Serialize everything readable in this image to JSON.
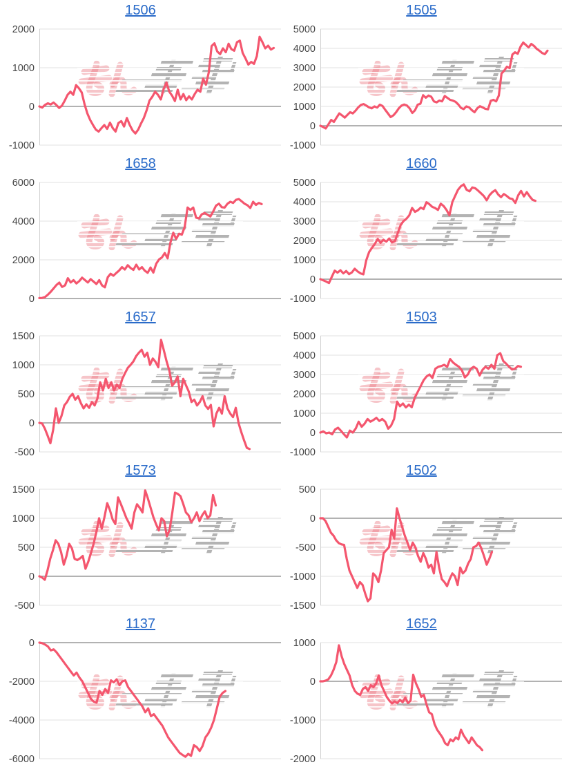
{
  "page": {
    "background": "#ffffff"
  },
  "watermark": {
    "name": "minkabu-watermark",
    "pink_color": "#e7626e",
    "gray_color": "#a9a9a9"
  },
  "style": {
    "line_color": "#f4566e",
    "grid_color": "#e0e0e0",
    "zero_line_color": "#999999",
    "axis_line_color": "#d0d0d0",
    "tick_label_color": "#454545",
    "title_link_color": "#2a6bc9"
  },
  "chart_data": [
    {
      "title": "1506",
      "type": "line",
      "ylim": [
        -1000,
        2000
      ],
      "yticks": [
        -1000,
        0,
        1000,
        2000
      ],
      "span": 0.97,
      "grid": true,
      "xlabel": "",
      "ylabel": "",
      "values": [
        0,
        -30,
        40,
        80,
        50,
        100,
        40,
        -40,
        20,
        150,
        300,
        380,
        300,
        550,
        470,
        360,
        60,
        -180,
        -350,
        -480,
        -600,
        -650,
        -560,
        -480,
        -580,
        -420,
        -560,
        -650,
        -430,
        -380,
        -520,
        -300,
        -480,
        -620,
        -700,
        -600,
        -440,
        -300,
        -100,
        150,
        250,
        380,
        300,
        180,
        450,
        620,
        380,
        280,
        140,
        430,
        180,
        320,
        160,
        260,
        180,
        320,
        430,
        380,
        720,
        560,
        880,
        1560,
        1630,
        1420,
        1350,
        1500,
        1400,
        1620,
        1480,
        1440,
        1660,
        1700,
        1380,
        1240,
        1080,
        1150,
        1100,
        1300,
        1800,
        1660,
        1500,
        1570,
        1470,
        1510
      ]
    },
    {
      "title": "1505",
      "type": "line",
      "ylim": [
        -1000,
        5000
      ],
      "yticks": [
        -1000,
        0,
        1000,
        2000,
        3000,
        4000,
        5000
      ],
      "span": 0.94,
      "grid": true,
      "xlabel": "",
      "ylabel": "",
      "values": [
        0,
        -60,
        -140,
        80,
        300,
        200,
        420,
        640,
        540,
        420,
        560,
        700,
        640,
        780,
        950,
        1080,
        1120,
        1040,
        950,
        900,
        1000,
        940,
        1090,
        1020,
        820,
        640,
        450,
        540,
        700,
        900,
        1040,
        1100,
        1050,
        900,
        660,
        800,
        1090,
        1140,
        1580,
        1450,
        1560,
        1500,
        1260,
        1210,
        1300,
        1260,
        1540,
        1440,
        1340,
        1300,
        1240,
        1100,
        920,
        860,
        1000,
        950,
        810,
        700,
        900,
        1010,
        950,
        880,
        850,
        1290,
        1340,
        1260,
        1560,
        2700,
        2850,
        3050,
        2980,
        3680,
        3800,
        3720,
        4080,
        4300,
        4180,
        4050,
        4230,
        4130,
        3980,
        3880,
        3760,
        3700,
        3880
      ]
    },
    {
      "title": "1658",
      "type": "line",
      "ylim": [
        0,
        6000
      ],
      "yticks": [
        0,
        2000,
        4000,
        6000
      ],
      "span": 0.92,
      "grid": true,
      "xlabel": "",
      "ylabel": "",
      "values": [
        20,
        30,
        80,
        200,
        350,
        520,
        700,
        820,
        600,
        680,
        1050,
        830,
        950,
        780,
        900,
        1080,
        950,
        830,
        1000,
        880,
        750,
        950,
        680,
        580,
        1100,
        1280,
        1180,
        1320,
        1450,
        1620,
        1500,
        1720,
        1580,
        1480,
        1750,
        1500,
        1620,
        1440,
        1330,
        1600,
        1340,
        1800,
        2020,
        2120,
        2350,
        2080,
        2900,
        3400,
        3080,
        3350,
        3300,
        3700,
        4700,
        4580,
        4700,
        4180,
        4140,
        4350,
        4420,
        4330,
        4240,
        4500,
        4800,
        4900,
        4720,
        4700,
        4900,
        5000,
        4940,
        5100,
        5140,
        5020,
        4900,
        4820,
        4680,
        5000,
        4840,
        4940,
        4880
      ]
    },
    {
      "title": "1660",
      "type": "line",
      "ylim": [
        -1000,
        5000
      ],
      "yticks": [
        -1000,
        0,
        1000,
        2000,
        3000,
        4000,
        5000
      ],
      "span": 0.89,
      "grid": true,
      "xlabel": "",
      "ylabel": "",
      "values": [
        0,
        -60,
        -120,
        -200,
        120,
        440,
        340,
        460,
        300,
        420,
        260,
        350,
        540,
        400,
        300,
        250,
        980,
        1400,
        1620,
        1820,
        2080,
        1880,
        2040,
        1940,
        2100,
        1900,
        1960,
        2380,
        2800,
        3000,
        3120,
        3300,
        3680,
        3480,
        3560,
        3700,
        3620,
        3980,
        3880,
        3740,
        3680,
        3580,
        3900,
        3780,
        3580,
        3300,
        3980,
        4300,
        4620,
        4800,
        4900,
        4620,
        4540,
        4740,
        4700,
        4580,
        4440,
        4300,
        4080,
        4340,
        4500,
        4600,
        4380,
        4240,
        4400,
        4300,
        4180,
        4140,
        3940,
        4340,
        4560,
        4280,
        4500,
        4280,
        4100,
        4050
      ]
    },
    {
      "title": "1657",
      "type": "line",
      "ylim": [
        -500,
        1500
      ],
      "yticks": [
        -500,
        0,
        500,
        1000,
        1500
      ],
      "span": 0.87,
      "grid": true,
      "xlabel": "",
      "ylabel": "",
      "values": [
        0,
        -10,
        -100,
        -220,
        -350,
        -120,
        250,
        0,
        120,
        300,
        360,
        450,
        500,
        400,
        460,
        340,
        250,
        320,
        260,
        360,
        300,
        420,
        700,
        560,
        760,
        600,
        700,
        560,
        660,
        600,
        760,
        860,
        950,
        1000,
        1060,
        1150,
        1210,
        1260,
        1140,
        1210,
        1000,
        1110,
        1050,
        960,
        1430,
        1250,
        1060,
        900,
        640,
        700,
        800,
        460,
        760,
        650,
        540,
        360,
        400,
        300,
        360,
        460,
        300,
        240,
        310,
        -60,
        160,
        260,
        160,
        460,
        250,
        160,
        100,
        260,
        0,
        -160,
        -300,
        -430,
        -450
      ]
    },
    {
      "title": "1503",
      "type": "line",
      "ylim": [
        -1000,
        5000
      ],
      "yticks": [
        -1000,
        0,
        1000,
        2000,
        3000,
        4000,
        5000
      ],
      "span": 0.83,
      "grid": true,
      "xlabel": "",
      "ylabel": "",
      "values": [
        0,
        60,
        -40,
        0,
        -90,
        160,
        250,
        90,
        -90,
        -250,
        100,
        0,
        210,
        560,
        300,
        460,
        700,
        560,
        650,
        760,
        600,
        700,
        560,
        200,
        360,
        700,
        1600,
        1360,
        1500,
        1300,
        1440,
        1310,
        1800,
        2100,
        2400,
        2700,
        2900,
        3000,
        2820,
        3300,
        3400,
        3440,
        3500,
        3400,
        3800,
        3620,
        3500,
        3400,
        3210,
        2850,
        3000,
        3300,
        3400,
        3300,
        2950,
        3250,
        3400,
        3300,
        3500,
        3300,
        4000,
        4100,
        3700,
        3560,
        3400,
        3260,
        3300,
        3440,
        3400
      ]
    },
    {
      "title": "1573",
      "type": "line",
      "ylim": [
        -500,
        1500
      ],
      "yticks": [
        -500,
        0,
        500,
        1000,
        1500
      ],
      "span": 0.73,
      "grid": true,
      "xlabel": "",
      "ylabel": "",
      "values": [
        0,
        -20,
        -60,
        100,
        300,
        450,
        620,
        560,
        420,
        200,
        350,
        560,
        480,
        300,
        280,
        310,
        350,
        130,
        250,
        400,
        560,
        760,
        1000,
        820,
        1020,
        1260,
        1140,
        980,
        900,
        1360,
        1250,
        1130,
        1010,
        920,
        820,
        1100,
        1240,
        1180,
        1100,
        1480,
        1340,
        1180,
        1020,
        900,
        790,
        1000,
        950,
        690,
        800,
        1100,
        1440,
        1420,
        1380,
        1250,
        1100,
        1050,
        930,
        1000,
        1100,
        950,
        1050,
        1120,
        1000,
        1050,
        1400,
        1220
      ]
    },
    {
      "title": "1502",
      "type": "line",
      "ylim": [
        -1500,
        500
      ],
      "yticks": [
        -1500,
        -1000,
        -500,
        0,
        500
      ],
      "span": 0.71,
      "grid": true,
      "xlabel": "",
      "ylabel": "",
      "values": [
        0,
        0,
        -50,
        -150,
        -250,
        -300,
        -380,
        -430,
        -450,
        -460,
        -700,
        -900,
        -1000,
        -1100,
        -1200,
        -1100,
        -1150,
        -1300,
        -1430,
        -1380,
        -950,
        -1000,
        -1100,
        -900,
        -600,
        -550,
        -500,
        -200,
        -350,
        170,
        0,
        -150,
        -300,
        -420,
        -550,
        -420,
        -500,
        -650,
        -750,
        -600,
        -700,
        -850,
        -800,
        -950,
        -580,
        -850,
        -1050,
        -1100,
        -1170,
        -1050,
        -950,
        -1000,
        -1150,
        -850,
        -950,
        -900,
        -780,
        -700,
        -500,
        -480,
        -420,
        -520,
        -650,
        -800,
        -700,
        -580
      ]
    },
    {
      "title": "1137",
      "type": "line",
      "ylim": [
        -6000,
        0
      ],
      "yticks": [
        -6000,
        -4000,
        -2000,
        0
      ],
      "span": 0.77,
      "grid": true,
      "xlabel": "",
      "ylabel": "",
      "values": [
        0,
        -30,
        -100,
        -200,
        -400,
        -350,
        -500,
        -700,
        -900,
        -1100,
        -1300,
        -1500,
        -1700,
        -1550,
        -1800,
        -2000,
        -2300,
        -2600,
        -2900,
        -3050,
        -3100,
        -2500,
        -2700,
        -2400,
        -2600,
        -1950,
        -2050,
        -1900,
        -2200,
        -2000,
        -1950,
        -2300,
        -2500,
        -2700,
        -2900,
        -3100,
        -3300,
        -3600,
        -3400,
        -3800,
        -3700,
        -3900,
        -4100,
        -4300,
        -4600,
        -4900,
        -5100,
        -5300,
        -5500,
        -5700,
        -5800,
        -5900,
        -5750,
        -5850,
        -5300,
        -5400,
        -5600,
        -5350,
        -4900,
        -4700,
        -4400,
        -4000,
        -3400,
        -2800,
        -2600,
        -2500
      ]
    },
    {
      "title": "1652",
      "type": "line",
      "ylim": [
        -2000,
        1000
      ],
      "yticks": [
        -2000,
        -1000,
        0,
        1000
      ],
      "span": 0.67,
      "grid": true,
      "xlabel": "",
      "ylabel": "",
      "values": [
        0,
        0,
        20,
        50,
        150,
        300,
        500,
        930,
        650,
        450,
        300,
        150,
        -100,
        -250,
        -320,
        -350,
        -200,
        -150,
        -250,
        -100,
        -150,
        -60,
        150,
        -100,
        -250,
        -400,
        -500,
        -570,
        -520,
        -560,
        -480,
        -540,
        -420,
        -560,
        -500,
        170,
        -50,
        -200,
        -400,
        -350,
        -600,
        -800,
        -850,
        -1100,
        -1250,
        -1350,
        -1450,
        -1600,
        -1650,
        -1500,
        -1550,
        -1450,
        -1500,
        -1250,
        -1400,
        -1500,
        -1600,
        -1450,
        -1550,
        -1650,
        -1700,
        -1780
      ]
    }
  ]
}
